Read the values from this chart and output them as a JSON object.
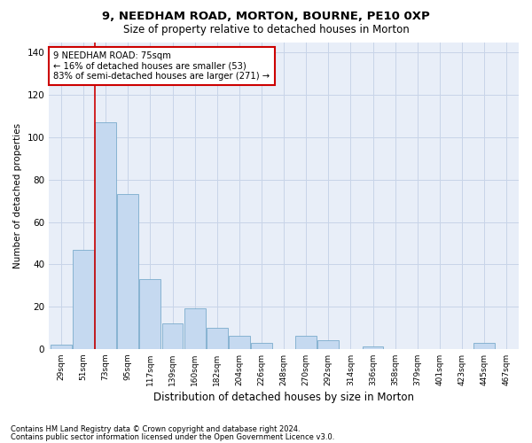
{
  "title1": "9, NEEDHAM ROAD, MORTON, BOURNE, PE10 0XP",
  "title2": "Size of property relative to detached houses in Morton",
  "xlabel": "Distribution of detached houses by size in Morton",
  "ylabel": "Number of detached properties",
  "categories": [
    "29sqm",
    "51sqm",
    "73sqm",
    "95sqm",
    "117sqm",
    "139sqm",
    "160sqm",
    "182sqm",
    "204sqm",
    "226sqm",
    "248sqm",
    "270sqm",
    "292sqm",
    "314sqm",
    "336sqm",
    "358sqm",
    "379sqm",
    "401sqm",
    "423sqm",
    "445sqm",
    "467sqm"
  ],
  "values": [
    2,
    47,
    107,
    73,
    33,
    12,
    19,
    10,
    6,
    3,
    0,
    6,
    4,
    0,
    1,
    0,
    0,
    0,
    0,
    3,
    0
  ],
  "bar_color": "#c5d9f0",
  "bar_edge_color": "#7aabcc",
  "grid_color": "#c8d4e8",
  "bg_color": "#e8eef8",
  "annotation_line1": "9 NEEDHAM ROAD: 75sqm",
  "annotation_line2": "← 16% of detached houses are smaller (53)",
  "annotation_line3": "83% of semi-detached houses are larger (271) →",
  "annotation_box_color": "#ffffff",
  "annotation_box_edge": "#cc0000",
  "property_line_color": "#cc0000",
  "ylim": [
    0,
    145
  ],
  "yticks": [
    0,
    20,
    40,
    60,
    80,
    100,
    120,
    140
  ],
  "footnote1": "Contains HM Land Registry data © Crown copyright and database right 2024.",
  "footnote2": "Contains public sector information licensed under the Open Government Licence v3.0."
}
